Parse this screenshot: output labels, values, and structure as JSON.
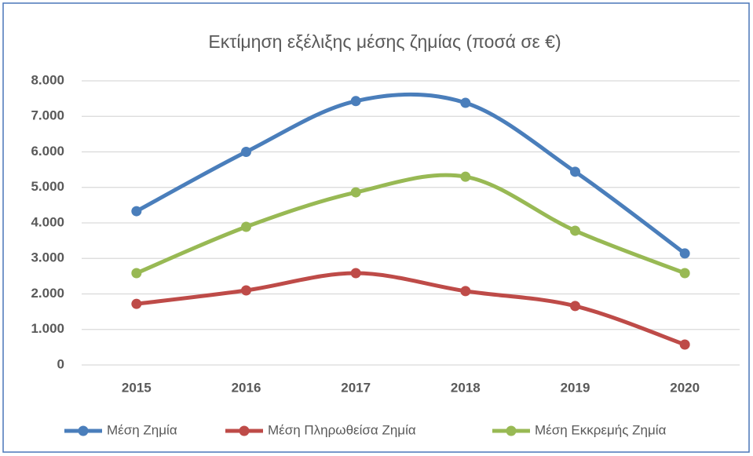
{
  "chart_data": {
    "type": "line",
    "title": "Εκτίμηση εξέλιξης μέσης ζημίας (ποσά σε €)",
    "categories": [
      "2015",
      "2016",
      "2017",
      "2018",
      "2019",
      "2020"
    ],
    "series": [
      {
        "name": "Μέση Ζημία",
        "color": "#4a7ebb",
        "values": [
          4330,
          6000,
          7430,
          7380,
          5440,
          3140
        ]
      },
      {
        "name": "Μέση Πληρωθείσα Ζημία",
        "color": "#be4b48",
        "values": [
          1720,
          2100,
          2585,
          2080,
          1660,
          575
        ]
      },
      {
        "name": "Μέση Εκκρεμής Ζημία",
        "color": "#98b954",
        "values": [
          2585,
          3890,
          4860,
          5300,
          3780,
          2585
        ]
      }
    ],
    "ylim": [
      0,
      8000
    ],
    "yticks": [
      0,
      {
        "value": 1000,
        "label": "1.000"
      },
      {
        "value": 2000,
        "label": "2.000"
      },
      {
        "value": 3000,
        "label": "3.000"
      },
      {
        "value": 4000,
        "label": "4.000"
      },
      {
        "value": 5000,
        "label": "5.000"
      },
      {
        "value": 6000,
        "label": "6.000"
      },
      {
        "value": 7000,
        "label": "7.000"
      },
      {
        "value": 8000,
        "label": "8.000"
      }
    ],
    "grid": true,
    "smooth": true,
    "legend": "bottom"
  }
}
